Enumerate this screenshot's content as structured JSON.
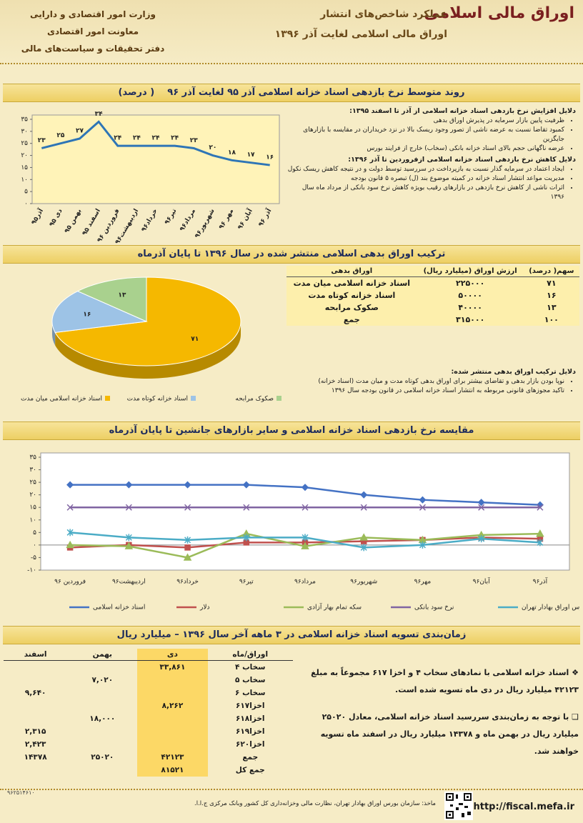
{
  "header": {
    "title": "اوراق مالی اسلامی",
    "subtitle": "عملکرد شاخص‌های انتشار",
    "subtitle2": "اوراق مالی اسلامی لغایت آذر ۱۳۹۶",
    "org": [
      "وزارت امور اقتصادی و دارایی",
      "معاونت امور اقتصادی",
      "دفتر تحقیقات و سیاست‌های مالی"
    ]
  },
  "chart_data": [
    {
      "type": "line",
      "title": "روند متوسط نرخ بازدهی اسناد خزانه اسلامی آذر ۹۵ لغایت آذر ۹۶",
      "subtitle": "( درصد)",
      "categories": [
        "آذر۹۵",
        "دی ۹۵",
        "بهمن ۹۵",
        "اسفند ۹۵",
        "فروردین ۹۶",
        "اردیبهشت۹۶",
        "خرداد۹۶",
        "تیر۹۶",
        "مرداد۹۶",
        "شهریور۹۶",
        "مهر ۹۶",
        "آبان ۹۶",
        "آذر ۹۶"
      ],
      "values": [
        23,
        25,
        27,
        34,
        24,
        24,
        24,
        24,
        23,
        20,
        18,
        17,
        16
      ],
      "value_labels": [
        "۲۳",
        "۲۵",
        "۲۷",
        "۳۴",
        "۲۴",
        "۲۴",
        "۲۴",
        "۲۴",
        "۲۳",
        "۲۰",
        "۱۸",
        "۱۷",
        "۱۶"
      ],
      "color": "#2e75b6",
      "ylim": [
        0,
        35
      ],
      "yticks": [
        {
          "value": 0,
          "label": "۰"
        },
        {
          "value": 5,
          "label": "۵"
        },
        {
          "value": 10,
          "label": "۱۰"
        },
        {
          "value": 15,
          "label": "۱۵"
        },
        {
          "value": 20,
          "label": "۲۰"
        },
        {
          "value": 25,
          "label": "۲۵"
        },
        {
          "value": 30,
          "label": "۳۰"
        },
        {
          "value": 35,
          "label": "۳۵"
        }
      ]
    },
    {
      "type": "pie",
      "title": "ترکیب اوراق بدهی اسلامی منتشر شده در سال ۱۳۹۶ تا پایان آذرماه",
      "categories": [
        "اسناد خزانه اسلامی میان مدت",
        "اسناد خزانه کوتاه مدت",
        "صکوک مرابحه"
      ],
      "values": [
        71,
        16,
        13
      ],
      "value_labels": [
        "۷۱",
        "۱۶",
        "۱۳"
      ],
      "colors": [
        "#f5b800",
        "#9dc3e6",
        "#a9d18e"
      ]
    },
    {
      "type": "line",
      "title": "مقایسه نرخ بازدهی اسناد خزانه اسلامی و سایر بازارهای جانشین تا پایان آذرماه",
      "categories": [
        "فروردین ۹۶",
        "اردیبهشت۹۶",
        "خرداد۹۶",
        "تیر۹۶",
        "مرداد۹۶",
        "شهریور۹۶",
        "مهر۹۶",
        "آبان۹۶",
        "آذر۹۶"
      ],
      "series": [
        {
          "name": "اسناد خزانه اسلامی",
          "color": "#4472c4",
          "marker": "diamond",
          "values": [
            24,
            24,
            24,
            24,
            23,
            20,
            18,
            17,
            16
          ]
        },
        {
          "name": "دلار",
          "color": "#c0504d",
          "marker": "square",
          "values": [
            -1,
            0,
            -1,
            1,
            1,
            1.5,
            2,
            3,
            2.5
          ]
        },
        {
          "name": "سکه تمام بهار آزادی",
          "color": "#9bbb59",
          "marker": "triangle",
          "values": [
            0,
            -0.5,
            -5,
            4.5,
            -0.5,
            3,
            2,
            4,
            4.5
          ]
        },
        {
          "name": "نرخ سود بانکی",
          "color": "#8064a2",
          "marker": "cross",
          "values": [
            15,
            15,
            15,
            15,
            15,
            15,
            15,
            15,
            15
          ]
        },
        {
          "name": "شاخص بورس اوراق بهادار تهران",
          "color": "#4bacc6",
          "marker": "star",
          "values": [
            5,
            3,
            2,
            3,
            3,
            -1,
            0,
            2.5,
            1
          ]
        }
      ],
      "ylim": [
        -10,
        35
      ],
      "yticks": [
        {
          "value": -10,
          "label": "-۱۰"
        },
        {
          "value": -5,
          "label": "-۵"
        },
        {
          "value": 0,
          "label": "۰"
        },
        {
          "value": 5,
          "label": "۵"
        },
        {
          "value": 10,
          "label": "۱۰"
        },
        {
          "value": 15,
          "label": "۱۵"
        },
        {
          "value": 20,
          "label": "۲۰"
        },
        {
          "value": 25,
          "label": "۲۵"
        },
        {
          "value": 30,
          "label": "۳۰"
        },
        {
          "value": 35,
          "label": "۳۵"
        }
      ]
    }
  ],
  "reasons": [
    {
      "heading": "دلایل افزایش نرخ بازدهی اسناد خزانه اسلامی از آذر تا اسفند ۱۳۹۵:",
      "bullets": [
        "ظرفیت پایین بازار سرمایه در پذیرش اوراق بدهی",
        "کمبود تقاضا نسبت به عرضه ناشی از تصور وجود ریسک بالا در نزد خریداران در مقایسه با بازارهای جایگزین",
        "عرضه ناگهانی حجم بالای اسناد خزانه بانکی (سخاب) خارج از فرایند بورس"
      ]
    },
    {
      "heading": "دلایل کاهش نرخ بازدهی اسناد خزانه اسلامی ازفروردین تا آذر ۱۳۹۶:",
      "bullets": [
        "ایجاد اعتماد در سرمایه گذار نسبت به بازپرداخت در سررسید توسط دولت و در نتیجه کاهش ریسک نکول",
        "مدیریت مواعد انتشار اسناد خزانه در کمیته موضوع بند (ل) تبصره ۵ قانون بودجه",
        "اثرات ناشی از کاهش نرخ بازدهی در بازارهای رقیب بویژه کاهش نرخ سود بانکی از مرداد ماه سال ۱۳۹۶"
      ]
    }
  ],
  "composition_table": {
    "headers": [
      "سهم( درصد)",
      "ارزش اوراق (میلیارد ریال)",
      "اوراق بدهی"
    ],
    "rows": [
      [
        "۷۱",
        "۲۲۵۰۰۰",
        "اسناد خزانه اسلامی میان مدت"
      ],
      [
        "۱۶",
        "۵۰۰۰۰",
        "اسناد خزانه کوتاه مدت"
      ],
      [
        "۱۳",
        "۴۰۰۰۰",
        "صکوک مرابحه"
      ],
      [
        "۱۰۰",
        "۳۱۵۰۰۰",
        "جمع"
      ]
    ]
  },
  "composition_notes": {
    "heading": "دلایل ترکیب اوراق بدهی منتشر شده:",
    "bullets": [
      "نوپا بودن بازار بدهی و تقاضای بیشتر برای اوراق بدهی کوتاه مدت و میان مدت (اسناد خزانه)",
      "تاکید مجوزهای قانونی مربوطه به انتشار اسناد خزانه اسلامی در قانون بودجه سال ۱۳۹۶"
    ]
  },
  "settlement": {
    "title": "زمان‌بندی تسویه اسناد خزانه اسلامی در ۳ ماهه آخر سال ۱۳۹۶ – میلیارد ریال",
    "table": {
      "headers": [
        "اوراق/ماه",
        "دی",
        "بهمن",
        "اسفند"
      ],
      "rows": [
        [
          "سخاب ۴",
          "۳۳,۸۶۱",
          null,
          null
        ],
        [
          "سخاب ۵",
          null,
          "۷,۰۲۰",
          null
        ],
        [
          "سخاب ۶",
          null,
          null,
          "۹,۶۴۰"
        ],
        [
          "اخزا۶۱۷",
          "۸,۲۶۲",
          null,
          null
        ],
        [
          "اخزا۶۱۸",
          null,
          "۱۸,۰۰۰",
          null
        ],
        [
          "اخزا۶۱۹",
          null,
          null,
          "۲,۳۱۵"
        ],
        [
          "اخزا۶۲۰",
          null,
          null,
          "۲,۴۲۳"
        ],
        [
          "جمع",
          "۴۲۱۲۳",
          "۲۵۰۲۰",
          "۱۴۳۷۸"
        ],
        [
          "جمع کل",
          "۸۱۵۲۱",
          null,
          null
        ]
      ]
    },
    "notes": [
      "اسناد خزانه اسلامی با نمادهای سخاب ۴ و اخزا ۶۱۷ مجموعاً به مبلغ ۴۲۱۲۳ میلیارد ریال در دی ماه تسویه شده است.",
      "با توجه به زمان‌بندی سررسید اسناد خزانه اسلامی، معادل ۲۵۰۲۰ میلیارد ریال در بهمن ماه و ۱۴۳۷۸ میلیارد ریال در اسفند ماه تسویه خواهند شد."
    ]
  },
  "footer": {
    "url": "http://fiscal.mefa.ir",
    "source": "ماخذ: سازمان بورس اوراق بهادار تهران، نظارت مالی وخزانه‌داری کل کشور وبانک مرکزی ج.ا.ا.",
    "code": "۹۶۲۵۱۴۶۱۰"
  }
}
